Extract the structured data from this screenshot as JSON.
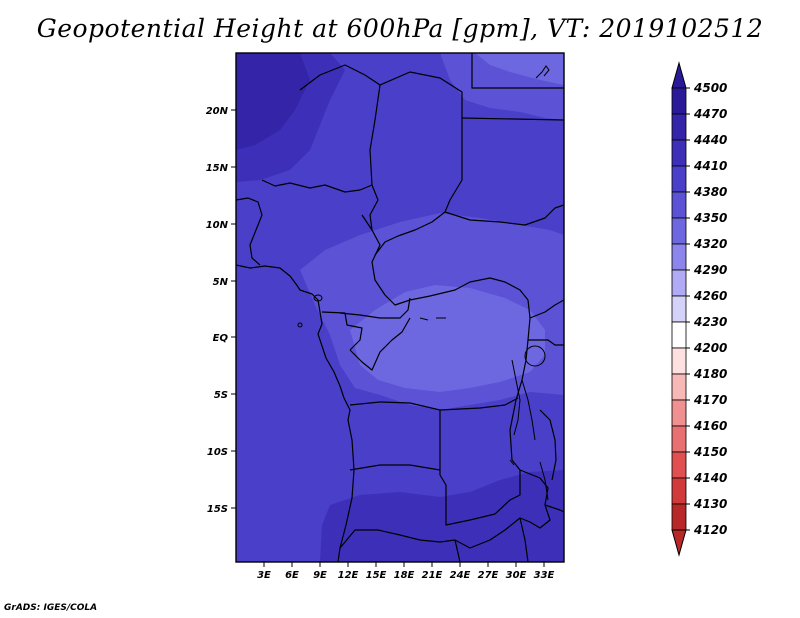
{
  "title": "Geopotential Height at 600hPa [gpm], VT: 2019102512",
  "credit": "GrADS: IGES/COLA",
  "lon_ticks": [
    "3E",
    "6E",
    "9E",
    "12E",
    "15E",
    "18E",
    "21E",
    "24E",
    "27E",
    "30E",
    "33E"
  ],
  "lat_ticks": [
    "20N",
    "15N",
    "10N",
    "5N",
    "EQ",
    "5S",
    "10S",
    "15S"
  ],
  "colorbar": {
    "levels": [
      "4500",
      "4470",
      "4440",
      "4410",
      "4380",
      "4350",
      "4320",
      "4290",
      "4260",
      "4230",
      "4200",
      "4180",
      "4170",
      "4160",
      "4150",
      "4140",
      "4130",
      "4120"
    ],
    "colors": [
      "#2a1a9a",
      "#3324a8",
      "#3d2fb8",
      "#4a3fc8",
      "#5b52d6",
      "#6d67e0",
      "#8c86ec",
      "#b0abf4",
      "#d4d2f8",
      "#ffffff",
      "#fde0e0",
      "#f8b8b8",
      "#f09090",
      "#e87070",
      "#e05050",
      "#d03a3a",
      "#b82828"
    ],
    "top_color": "#2a1a9a",
    "bottom_color": "#b82828"
  },
  "map_colors": {
    "c4350": "#6d67e0",
    "c4380": "#5b52d6",
    "c4410": "#4a3fc8",
    "c4440": "#3d2fb8",
    "c4470": "#3324a8"
  }
}
